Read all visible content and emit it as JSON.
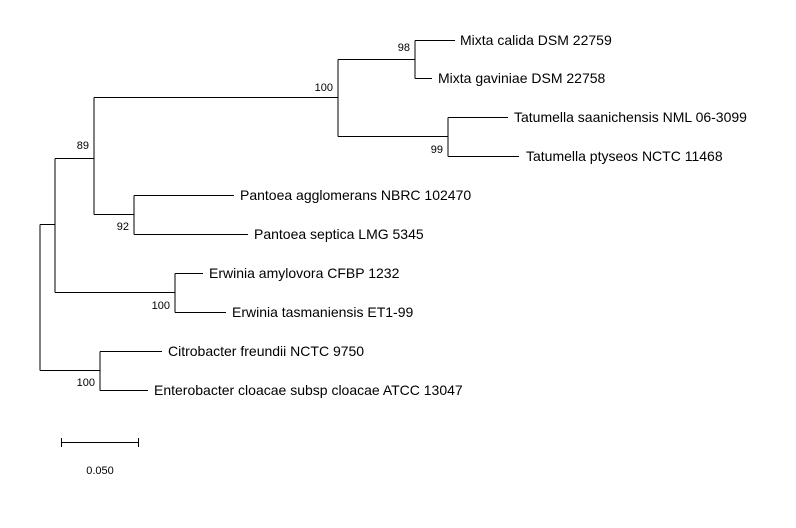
{
  "tree": {
    "taxa": [
      "Mixta calida DSM 22759",
      "Mixta gaviniae DSM 22758",
      "Tatumella saanichensis NML 06-3099",
      "Tatumella ptyseos NCTC 11468",
      "Pantoea agglomerans NBRC 102470",
      "Pantoea septica LMG 5345",
      "Erwinia amylovora CFBP 1232",
      "Erwinia tasmaniensis ET1-99",
      "Citrobacter freundii NCTC 9750",
      "Enterobacter cloacae subsp cloacae ATCC 13047"
    ],
    "support": {
      "mixta": "98",
      "mixta_tatumella": "100",
      "tatumella": "99",
      "ingroup": "89",
      "pantoea": "92",
      "erwinia": "100",
      "outgroup": "100"
    }
  },
  "scale_bar": {
    "label": "0.050"
  }
}
